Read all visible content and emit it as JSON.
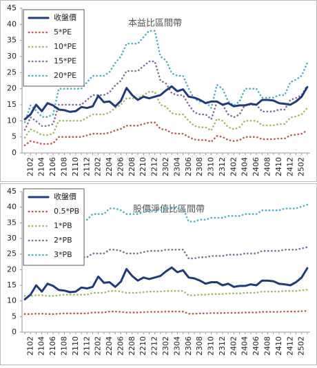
{
  "chart_data": [
    {
      "type": "line",
      "title": "本益比區間帶",
      "categories": [
        null,
        "2102",
        null,
        "2104",
        null,
        "2106",
        null,
        "2108",
        null,
        "2110",
        null,
        "2112",
        null,
        "2202",
        null,
        "2204",
        null,
        "2206",
        null,
        "2208",
        null,
        "2210",
        null,
        "2212",
        null,
        "2302",
        null,
        "2304",
        null,
        "2306",
        null,
        "2308",
        null,
        "2310",
        null,
        "2312",
        null,
        "2402",
        null,
        "2404",
        null,
        "2406",
        null,
        "2408",
        null,
        "2410",
        null,
        "2412",
        null,
        "2502",
        null
      ],
      "ylim": [
        0,
        45
      ],
      "yticks": [
        0,
        5,
        10,
        15,
        20,
        25,
        30,
        35,
        40,
        45
      ],
      "grid": false,
      "legend": "upper left",
      "series": [
        {
          "name": "收盤價",
          "color": "#1f3a7a",
          "values": [
            10.5,
            12,
            15,
            13,
            15.5,
            14.8,
            13.5,
            13.3,
            12.8,
            13,
            14.3,
            14,
            14.5,
            17.8,
            15.8,
            16,
            14.5,
            16.2,
            20.2,
            18,
            16.5,
            17.5,
            17,
            17.5,
            18,
            19.5,
            20.7,
            19.2,
            19.8,
            17.5,
            17.2,
            16.5,
            15.5,
            16,
            16,
            15,
            15.5,
            14.5,
            14.8,
            14.8,
            15.3,
            15,
            16.5,
            16.5,
            16.3,
            15.5,
            15.3,
            15,
            16,
            17.5,
            20.5
          ]
        },
        {
          "name": "5*PE",
          "color": "#c0504d",
          "values": [
            2.4,
            3.7,
            3.3,
            2.8,
            2.8,
            3,
            5,
            5,
            5,
            5,
            5,
            5.5,
            6,
            6,
            6,
            6.3,
            7,
            7.5,
            8.5,
            8.5,
            8.5,
            9,
            9.5,
            9.5,
            7.5,
            7.2,
            6.2,
            6,
            6,
            5,
            4.2,
            4,
            4,
            3.5,
            5.3,
            5,
            4,
            3.7,
            4,
            5,
            5,
            5,
            4.3,
            4.3,
            4.3,
            4.5,
            4.5,
            5.5,
            5.7,
            6,
            7
          ]
        },
        {
          "name": "10*PE",
          "color": "#9bbb59",
          "values": [
            4.8,
            7.4,
            6.6,
            5.6,
            5.6,
            6,
            10,
            10,
            10,
            10,
            10,
            11,
            12,
            12,
            12,
            12.6,
            14,
            15,
            17,
            17,
            17,
            18,
            19,
            19,
            15,
            14.4,
            12.4,
            12,
            12,
            10,
            8.4,
            8,
            8,
            7,
            10.6,
            10,
            8,
            7.4,
            8,
            10,
            10,
            10,
            8.6,
            8.6,
            8.6,
            9,
            9,
            11,
            11.4,
            12,
            14
          ]
        },
        {
          "name": "15*PE",
          "color": "#8064a2",
          "values": [
            7.2,
            11.1,
            9.9,
            8.4,
            8.4,
            9,
            15,
            15,
            15,
            15,
            15,
            16.5,
            18,
            18,
            18,
            18.9,
            21,
            22.5,
            25.5,
            25.5,
            25.5,
            27,
            28.5,
            28.5,
            22.5,
            21.6,
            18.6,
            18,
            18,
            15,
            12.6,
            12,
            12,
            10.5,
            15.9,
            15,
            12,
            11.1,
            12,
            15,
            15,
            15,
            12.9,
            12.9,
            12.9,
            13.5,
            13.5,
            16.5,
            17.1,
            18,
            21
          ]
        },
        {
          "name": "20*PE",
          "color": "#4bacc6",
          "values": [
            9.6,
            14.8,
            13.2,
            11.2,
            11.2,
            12,
            20,
            20,
            20,
            20,
            20,
            22,
            24,
            24,
            24,
            25.2,
            28,
            30,
            34,
            34,
            34,
            36,
            38,
            38,
            30,
            28.8,
            24.8,
            24,
            24,
            20,
            16.8,
            16,
            16,
            14,
            21.2,
            20,
            16,
            14.8,
            16,
            20,
            20,
            20,
            17.2,
            17.2,
            17.2,
            18,
            18,
            22,
            22.8,
            24,
            28
          ]
        }
      ]
    },
    {
      "type": "line",
      "title": "股價淨值比區間帶",
      "categories": [
        null,
        "2102",
        null,
        "2104",
        null,
        "2106",
        null,
        "2108",
        null,
        "2110",
        null,
        "2112",
        null,
        "2202",
        null,
        "2204",
        null,
        "2206",
        null,
        "2208",
        null,
        "2210",
        null,
        "2212",
        null,
        "2302",
        null,
        "2304",
        null,
        "2306",
        null,
        "2308",
        null,
        "2310",
        null,
        "2312",
        null,
        "2402",
        null,
        "2404",
        null,
        "2406",
        null,
        "2408",
        null,
        "2410",
        null,
        "2412",
        null,
        "2502",
        null
      ],
      "ylim": [
        0,
        45
      ],
      "yticks": [
        0,
        5,
        10,
        15,
        20,
        25,
        30,
        35,
        40,
        45
      ],
      "grid": false,
      "legend": "upper left",
      "series": [
        {
          "name": "收盤價",
          "color": "#1f3a7a",
          "values": [
            10.5,
            12,
            15,
            13,
            15.5,
            14.8,
            13.5,
            13.3,
            12.8,
            13,
            14.3,
            14,
            14.5,
            17.8,
            15.8,
            16,
            14.5,
            16.2,
            20.2,
            18,
            16.5,
            17.5,
            17,
            17.5,
            18,
            19.5,
            20.7,
            19.2,
            19.8,
            17.5,
            17.2,
            16.5,
            15.5,
            16,
            16,
            15,
            15.5,
            14.5,
            14.8,
            14.8,
            15.3,
            15,
            16.5,
            16.5,
            16.3,
            15.5,
            15.3,
            15,
            16,
            17.5,
            20.5
          ]
        },
        {
          "name": "0.5*PB",
          "color": "#c0504d",
          "values": [
            5.8,
            5.8,
            5.9,
            5.9,
            5.8,
            5.8,
            5.9,
            6,
            6,
            6,
            6,
            6,
            6.3,
            6.3,
            6.3,
            6.6,
            6.6,
            6.5,
            6.3,
            6.3,
            6.3,
            6.4,
            6.5,
            6.5,
            6.5,
            6.6,
            6.6,
            6.6,
            6.6,
            5.9,
            5.9,
            6,
            6,
            6.1,
            6.1,
            6.1,
            6.2,
            6.2,
            6.2,
            6.3,
            6.3,
            6.3,
            6.5,
            6.5,
            6.5,
            6.5,
            6.6,
            6.6,
            6.6,
            6.7,
            6.8
          ]
        },
        {
          "name": "1*PB",
          "color": "#9bbb59",
          "values": [
            11.6,
            11.6,
            11.8,
            11.8,
            11.6,
            11.6,
            11.8,
            12,
            12,
            12,
            12,
            12,
            12.6,
            12.6,
            12.6,
            13.2,
            13.2,
            13,
            12.6,
            12.6,
            12.6,
            12.8,
            13,
            13,
            13,
            13.2,
            13.2,
            13.2,
            13.2,
            11.8,
            11.8,
            12,
            12,
            12.2,
            12.2,
            12.2,
            12.4,
            12.4,
            12.4,
            12.6,
            12.6,
            12.6,
            13,
            13,
            13,
            13,
            13.2,
            13.2,
            13.2,
            13.4,
            13.6
          ]
        },
        {
          "name": "2*PB",
          "color": "#8064a2",
          "values": [
            23.2,
            23.2,
            23.6,
            23.6,
            23.2,
            23.2,
            23.6,
            24,
            24,
            24,
            24,
            24,
            25.2,
            25.2,
            25.2,
            26.4,
            26.4,
            26,
            25.2,
            25.2,
            25.2,
            25.6,
            26,
            26,
            26,
            26.4,
            26.4,
            26.4,
            26.4,
            23.6,
            23.6,
            24,
            24,
            24.4,
            24.4,
            24.4,
            24.8,
            24.8,
            24.8,
            25.2,
            25.2,
            25.2,
            26,
            26,
            26,
            26,
            26.4,
            26.4,
            26.4,
            26.8,
            27.2
          ]
        },
        {
          "name": "3*PB",
          "color": "#4bacc6",
          "values": [
            34.8,
            34.8,
            35.4,
            35.4,
            34.8,
            34.8,
            35.4,
            36,
            36,
            36,
            36,
            36,
            37.8,
            37.8,
            37.8,
            39.6,
            39.6,
            39,
            37.8,
            37.8,
            37.8,
            38.4,
            39,
            39,
            39,
            39.6,
            39.6,
            39.6,
            39.6,
            35.4,
            35.4,
            36,
            36,
            36.6,
            36.6,
            36.6,
            37.2,
            37.2,
            37.2,
            37.8,
            37.8,
            37.8,
            39,
            39,
            39,
            39,
            39.6,
            39.6,
            39.6,
            40.2,
            40.8
          ]
        }
      ]
    }
  ]
}
